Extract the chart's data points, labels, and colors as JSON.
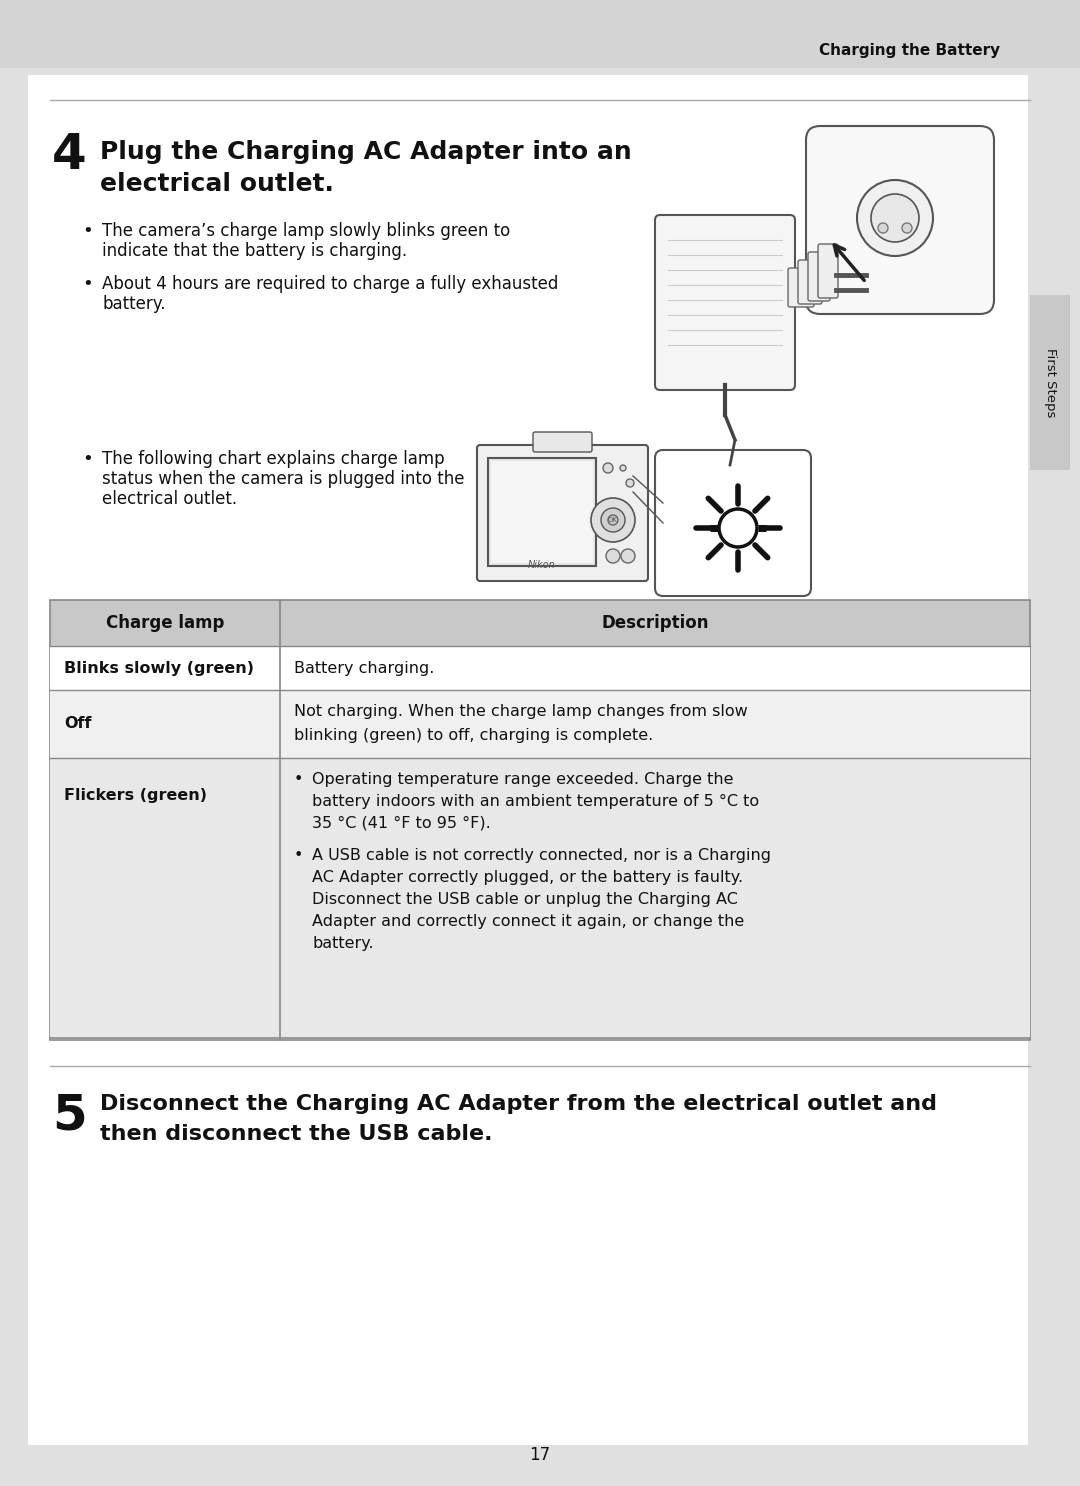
{
  "page_bg": "#e0e0e0",
  "content_bg": "#ffffff",
  "header_bg": "#d4d4d4",
  "header_text": "Charging the Battery",
  "step4_num": "4",
  "step4_title_line1": "Plug the Charging AC Adapter into an",
  "step4_title_line2": "electrical outlet.",
  "bullet1_line1": "The camera’s charge lamp slowly blinks green to",
  "bullet1_line2": "indicate that the battery is charging.",
  "bullet2_line1": "About 4 hours are required to charge a fully exhausted",
  "bullet2_line2": "battery.",
  "bullet3_line1": "The following chart explains charge lamp",
  "bullet3_line2": "status when the camera is plugged into the",
  "bullet3_line3": "electrical outlet.",
  "table_col1_header": "Charge lamp",
  "table_col2_header": "Description",
  "row1_lamp": "Blinks slowly (green)",
  "row1_desc": "Battery charging.",
  "row2_lamp": "Off",
  "row2_desc_line1": "Not charging. When the charge lamp changes from slow",
  "row2_desc_line2": "blinking (green) to off, charging is complete.",
  "row3_lamp": "Flickers (green)",
  "row3_desc_bullet1_line1": "Operating temperature range exceeded. Charge the",
  "row3_desc_bullet1_line2": "battery indoors with an ambient temperature of 5 °C to",
  "row3_desc_bullet1_line3": "35 °C (41 °F to 95 °F).",
  "row3_desc_bullet2_line1": "A USB cable is not correctly connected, nor is a Charging",
  "row3_desc_bullet2_line2": "AC Adapter correctly plugged, or the battery is faulty.",
  "row3_desc_bullet2_line3": "Disconnect the USB cable or unplug the Charging AC",
  "row3_desc_bullet2_line4": "Adapter and correctly connect it again, or change the",
  "row3_desc_bullet2_line5": "battery.",
  "step5_num": "5",
  "step5_title_line1": "Disconnect the Charging AC Adapter from the electrical outlet and",
  "step5_title_line2": "then disconnect the USB cable.",
  "page_num": "17",
  "sidebar_text": "First Steps",
  "table_header_bg": "#c8c8c8",
  "row1_bg": "#ffffff",
  "row2_bg": "#f0f0f0",
  "row3_bg": "#e8e8e8"
}
